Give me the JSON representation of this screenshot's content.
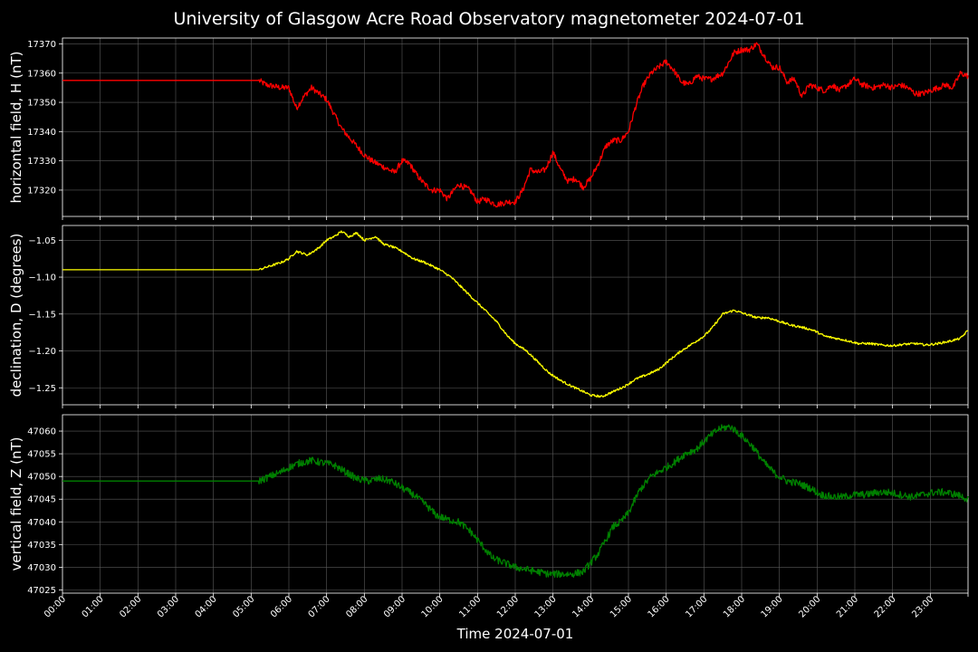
{
  "title": "University of Glasgow Acre Road Observatory magnetometer 2024-07-01",
  "xlabel": "Time 2024-07-01",
  "colors": {
    "background": "#000000",
    "grid": "#5a5a5a",
    "H": "#ff0000",
    "D": "#ffff00",
    "Z": "#008000"
  },
  "chart_data": {
    "type": "line",
    "x_range_hours": [
      0,
      24
    ],
    "x_ticks": [
      "00:00",
      "01:00",
      "02:00",
      "03:00",
      "04:00",
      "05:00",
      "06:00",
      "07:00",
      "08:00",
      "09:00",
      "10:00",
      "11:00",
      "12:00",
      "13:00",
      "14:00",
      "15:00",
      "16:00",
      "17:00",
      "18:00",
      "19:00",
      "20:00",
      "21:00",
      "22:00",
      "23:00"
    ],
    "grid": true,
    "panels": [
      {
        "name": "H",
        "ylabel": "horizontal field, H (nT)",
        "color": "#ff0000",
        "ylim": [
          17311,
          17372
        ],
        "yticks": [
          17320,
          17330,
          17340,
          17350,
          17360,
          17370
        ],
        "noise": 1.0,
        "x": [
          0,
          5.2,
          5.4,
          5.8,
          6.0,
          6.2,
          6.4,
          6.6,
          6.8,
          7.0,
          7.2,
          7.4,
          7.6,
          7.8,
          8.0,
          8.2,
          8.5,
          8.8,
          9.0,
          9.2,
          9.4,
          9.6,
          9.8,
          10.0,
          10.2,
          10.5,
          10.8,
          11.0,
          11.2,
          11.5,
          11.8,
          12.0,
          12.2,
          12.4,
          12.6,
          12.8,
          13.0,
          13.2,
          13.4,
          13.6,
          13.8,
          14.0,
          14.2,
          14.4,
          14.6,
          14.8,
          15.0,
          15.2,
          15.4,
          15.6,
          15.8,
          16.0,
          16.2,
          16.4,
          16.6,
          16.8,
          17.0,
          17.2,
          17.5,
          17.8,
          18.0,
          18.2,
          18.4,
          18.6,
          18.8,
          19.0,
          19.2,
          19.4,
          19.6,
          19.8,
          20.0,
          20.2,
          20.4,
          20.6,
          20.8,
          21.0,
          21.2,
          21.5,
          21.8,
          22.0,
          22.2,
          22.4,
          22.6,
          22.8,
          23.0,
          23.2,
          23.4,
          23.6,
          23.8,
          24.0
        ],
        "y": [
          17357.5,
          17357.5,
          17356,
          17355,
          17355,
          17348,
          17352,
          17355,
          17353,
          17351,
          17346,
          17341,
          17338,
          17335,
          17332,
          17330,
          17328,
          17326,
          17330,
          17329,
          17325,
          17322,
          17320,
          17320,
          17317,
          17322,
          17320,
          17316,
          17317,
          17315,
          17316,
          17316,
          17320,
          17327,
          17326,
          17327,
          17333,
          17327,
          17323,
          17324,
          17321,
          17324,
          17329,
          17335,
          17337,
          17337,
          17340,
          17349,
          17356,
          17360,
          17362,
          17364,
          17361,
          17357,
          17356,
          17359,
          17358,
          17358,
          17360,
          17367,
          17368,
          17368,
          17370,
          17366,
          17362,
          17362,
          17357,
          17358,
          17352,
          17356,
          17355,
          17354,
          17356,
          17354,
          17356,
          17358,
          17356,
          17355,
          17356,
          17355,
          17356,
          17355,
          17353,
          17353,
          17354,
          17355,
          17356,
          17355,
          17360,
          17359
        ]
      },
      {
        "name": "D",
        "ylabel": "declination, D (degrees)",
        "color": "#ffff00",
        "ylim": [
          -1.273,
          -1.03
        ],
        "yticks": [
          -1.25,
          -1.2,
          -1.15,
          -1.1,
          -1.05
        ],
        "ytick_labels": [
          "−1.25",
          "−1.20",
          "−1.15",
          "−1.10",
          "−1.05"
        ],
        "noise": 0.0015,
        "x": [
          0,
          5.2,
          5.5,
          5.8,
          6.0,
          6.2,
          6.5,
          6.8,
          7.0,
          7.2,
          7.4,
          7.6,
          7.8,
          8.0,
          8.3,
          8.5,
          8.8,
          9.0,
          9.3,
          9.6,
          10.0,
          10.3,
          10.6,
          10.9,
          11.2,
          11.5,
          11.8,
          12.0,
          12.3,
          12.6,
          12.9,
          13.2,
          13.5,
          13.8,
          14.0,
          14.3,
          14.6,
          14.9,
          15.2,
          15.5,
          15.8,
          16.1,
          16.4,
          16.7,
          17.0,
          17.2,
          17.5,
          17.8,
          18.1,
          18.4,
          18.7,
          19.0,
          19.3,
          19.6,
          19.9,
          20.2,
          20.5,
          20.8,
          21.1,
          21.4,
          21.7,
          22.0,
          22.3,
          22.6,
          22.9,
          23.2,
          23.5,
          23.8,
          24.0
        ],
        "y": [
          -1.09,
          -1.09,
          -1.085,
          -1.08,
          -1.075,
          -1.065,
          -1.07,
          -1.06,
          -1.05,
          -1.045,
          -1.038,
          -1.045,
          -1.04,
          -1.05,
          -1.045,
          -1.055,
          -1.06,
          -1.065,
          -1.075,
          -1.08,
          -1.09,
          -1.1,
          -1.115,
          -1.13,
          -1.145,
          -1.16,
          -1.18,
          -1.19,
          -1.2,
          -1.215,
          -1.23,
          -1.24,
          -1.248,
          -1.255,
          -1.26,
          -1.262,
          -1.255,
          -1.248,
          -1.238,
          -1.232,
          -1.225,
          -1.212,
          -1.2,
          -1.19,
          -1.18,
          -1.17,
          -1.15,
          -1.145,
          -1.15,
          -1.155,
          -1.155,
          -1.16,
          -1.165,
          -1.168,
          -1.172,
          -1.18,
          -1.183,
          -1.186,
          -1.19,
          -1.19,
          -1.192,
          -1.193,
          -1.191,
          -1.19,
          -1.192,
          -1.19,
          -1.187,
          -1.183,
          -1.172
        ]
      },
      {
        "name": "Z",
        "ylabel": "vertical field, Z (nT)",
        "color": "#008000",
        "ylim": [
          47024.3,
          47063.6
        ],
        "yticks": [
          47025,
          47030,
          47035,
          47040,
          47045,
          47050,
          47055,
          47060
        ],
        "noise": 0.8,
        "x": [
          0,
          5.2,
          5.5,
          5.8,
          6.0,
          6.3,
          6.6,
          6.9,
          7.2,
          7.5,
          7.8,
          8.1,
          8.4,
          8.7,
          9.0,
          9.3,
          9.6,
          9.9,
          10.2,
          10.5,
          10.8,
          11.1,
          11.4,
          11.7,
          12.0,
          12.3,
          12.6,
          12.9,
          13.2,
          13.5,
          13.8,
          14.0,
          14.2,
          14.4,
          14.6,
          14.8,
          15.0,
          15.3,
          15.6,
          15.9,
          16.2,
          16.5,
          16.8,
          17.1,
          17.4,
          17.7,
          18.0,
          18.3,
          18.6,
          18.9,
          19.2,
          19.5,
          19.8,
          20.1,
          20.4,
          20.7,
          21.0,
          21.3,
          21.6,
          21.9,
          22.2,
          22.5,
          22.8,
          23.1,
          23.4,
          23.7,
          24.0
        ],
        "y": [
          47049,
          47049,
          47050,
          47051,
          47052,
          47053,
          47053.5,
          47053,
          47052.5,
          47051,
          47049.5,
          47049,
          47049.5,
          47049,
          47047.5,
          47046,
          47044,
          47041.5,
          47040.5,
          47040,
          47038,
          47035,
          47032,
          47031,
          47030,
          47029.5,
          47029,
          47028.5,
          47028.5,
          47028.5,
          47029,
          47031,
          47033,
          47036,
          47039,
          47040,
          47042,
          47047,
          47050,
          47051.5,
          47053,
          47055,
          47056,
          47058.5,
          47060.5,
          47061,
          47059,
          47056.5,
          47053,
          47050.5,
          47049,
          47048.5,
          47047.5,
          47046,
          47045.5,
          47045.5,
          47046,
          47046,
          47046.5,
          47046.5,
          47046,
          47045.5,
          47046,
          47046.5,
          47046.5,
          47046,
          47045
        ]
      }
    ]
  }
}
